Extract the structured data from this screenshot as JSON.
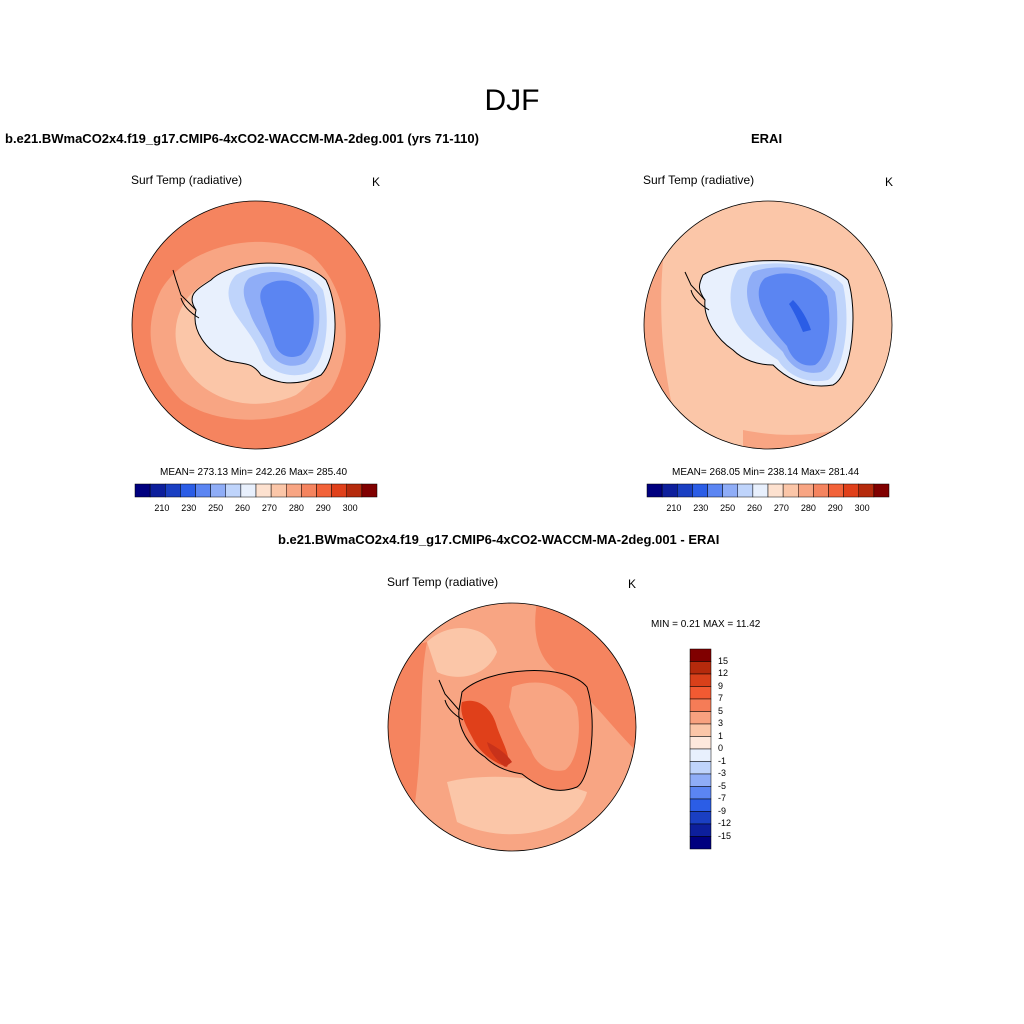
{
  "figure": {
    "title": "DJF"
  },
  "panels": {
    "model": {
      "title": "b.e21.BWmaCO2x4.f19_g17.CMIP6-4xCO2-WACCM-MA-2deg.001 (yrs 71-110)",
      "variable": "Surf Temp (radiative)",
      "units": "K",
      "stats": {
        "mean": "273.13",
        "min": "242.26",
        "max": "285.40"
      },
      "stats_text": "MEAN= 273.13  Min= 242.26  Max= 285.40"
    },
    "obs": {
      "title": "ERAI",
      "variable": "Surf Temp (radiative)",
      "units": "K",
      "stats": {
        "mean": "268.05",
        "min": "238.14",
        "max": "281.44"
      },
      "stats_text": "MEAN= 268.05  Min= 238.14  Max= 281.44"
    },
    "diff": {
      "title": "b.e21.BWmaCO2x4.f19_g17.CMIP6-4xCO2-WACCM-MA-2deg.001 - ERAI",
      "variable": "Surf Temp (radiative)",
      "units": "K",
      "stats": {
        "min": "0.21",
        "max": "11.42"
      },
      "stats_text": "MIN =   0.21 MAX =  11.42"
    }
  },
  "colorbars": {
    "absolute": {
      "ticks": [
        "210",
        "230",
        "250",
        "260",
        "270",
        "280",
        "290",
        "300"
      ],
      "colors": [
        "#00007f",
        "#0d1f9c",
        "#1a3fc2",
        "#2b5de6",
        "#5b85f2",
        "#8fadf7",
        "#bfd4fb",
        "#e8f0fd",
        "#fde1cf",
        "#fbc6a8",
        "#f8a583",
        "#f5845f",
        "#f26239",
        "#e0401a",
        "#b52a0c",
        "#800000"
      ]
    },
    "difference": {
      "ticks": [
        "15",
        "12",
        "9",
        "7",
        "5",
        "3",
        "1",
        "0",
        "-1",
        "-3",
        "-5",
        "-7",
        "-9",
        "-12",
        "-15"
      ],
      "colors": [
        "#800000",
        "#b52a0c",
        "#d9401a",
        "#f25a32",
        "#f57c57",
        "#f8a17f",
        "#fbc6a8",
        "#fde8dc",
        "#e8f0fd",
        "#bfd4fb",
        "#8fadf7",
        "#5b85f2",
        "#2b5de6",
        "#1a3fc2",
        "#0d1f9c",
        "#00007f"
      ]
    },
    "map_colors": {
      "c1": "#fde1cf",
      "c2": "#fbc6a8",
      "c3": "#f8a583",
      "c4": "#f5845f",
      "c5": "#f26239",
      "ice0": "#e8f0fd",
      "ice1": "#bfd4fb",
      "ice2": "#8fadf7",
      "ice3": "#5b85f2",
      "ice4": "#3f6ee8",
      "ice5": "#2b5de6",
      "d1": "#e0401a",
      "d2": "#c8321a"
    }
  }
}
